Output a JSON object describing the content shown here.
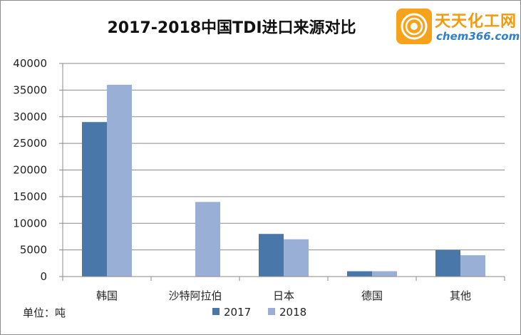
{
  "logo": {
    "brand": "天天化工网",
    "domain": "chem366.com"
  },
  "unit_note": "单位：吨",
  "colors": {
    "series_2017": "#4a77aa",
    "series_2018": "#99afd6",
    "grid": "#8a8a8a",
    "logo_orange": "#f7a21b",
    "logo_blue": "#2f80c8"
  },
  "chart_data": {
    "type": "bar",
    "title": "2017-2018中国TDI进口来源对比",
    "categories": [
      "韩国",
      "沙特阿拉伯",
      "日本",
      "德国",
      "其他"
    ],
    "series": [
      {
        "name": "2017",
        "values": [
          29000,
          0,
          8000,
          1000,
          5000
        ]
      },
      {
        "name": "2018",
        "values": [
          36000,
          14000,
          7000,
          1000,
          4000
        ]
      }
    ],
    "ylim": [
      0,
      40000
    ],
    "yticks": [
      "0",
      "5000",
      "10000",
      "15000",
      "20000",
      "25000",
      "30000",
      "35000",
      "40000"
    ],
    "grid": true,
    "legend": "bottom"
  }
}
